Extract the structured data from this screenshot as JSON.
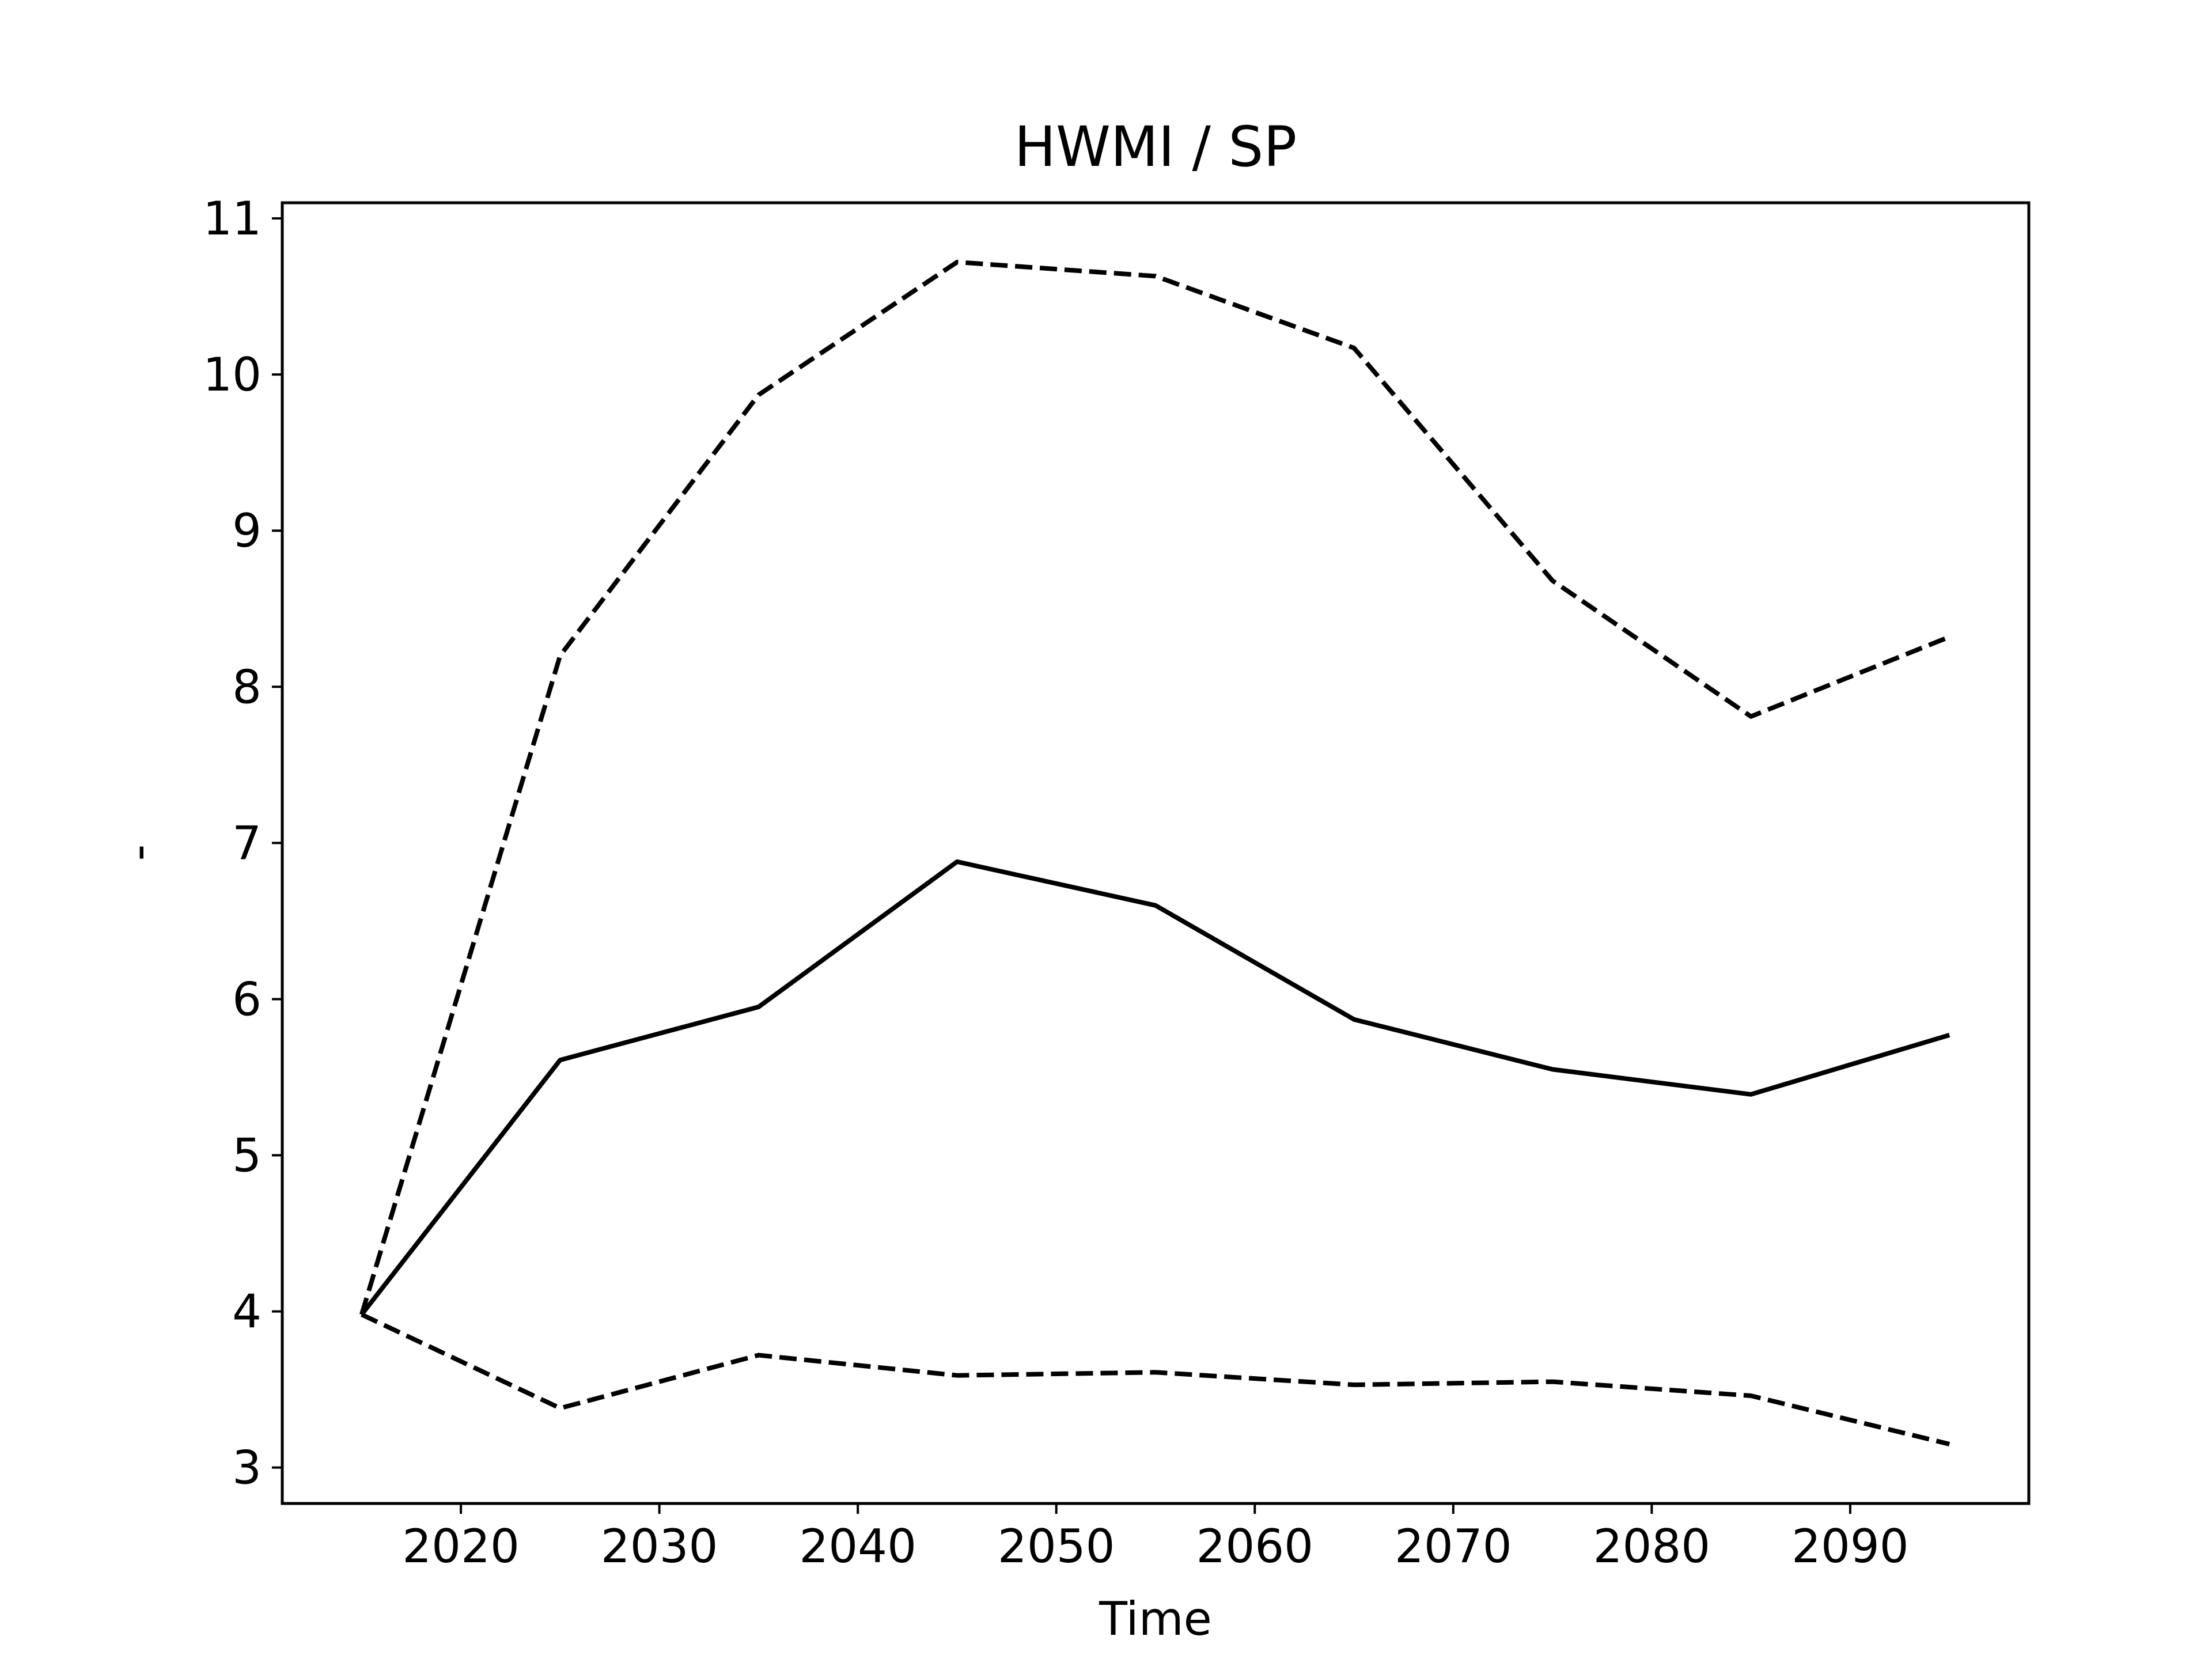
{
  "chart_data": {
    "type": "line",
    "title": "HWMI / SP",
    "xlabel": "Time",
    "ylabel": "-",
    "xlim": [
      2011,
      2099
    ],
    "ylim": [
      2.77,
      11.1
    ],
    "xticks": [
      2020,
      2030,
      2040,
      2050,
      2060,
      2070,
      2080,
      2090
    ],
    "yticks": [
      3,
      4,
      5,
      6,
      7,
      8,
      9,
      10,
      11
    ],
    "grid": false,
    "legend": "none",
    "line_color": "#000000",
    "x": [
      2015,
      2025,
      2035,
      2045,
      2055,
      2065,
      2075,
      2085,
      2095
    ],
    "series": [
      {
        "style": "dashed",
        "values": [
          3.98,
          8.2,
          9.87,
          10.72,
          10.63,
          10.17,
          8.68,
          7.81,
          8.32
        ]
      },
      {
        "style": "solid",
        "values": [
          3.98,
          5.61,
          5.95,
          6.88,
          6.6,
          5.87,
          5.55,
          5.39,
          5.77
        ]
      },
      {
        "style": "dashed",
        "values": [
          3.98,
          3.38,
          3.72,
          3.59,
          3.61,
          3.53,
          3.55,
          3.46,
          3.15
        ]
      }
    ]
  }
}
